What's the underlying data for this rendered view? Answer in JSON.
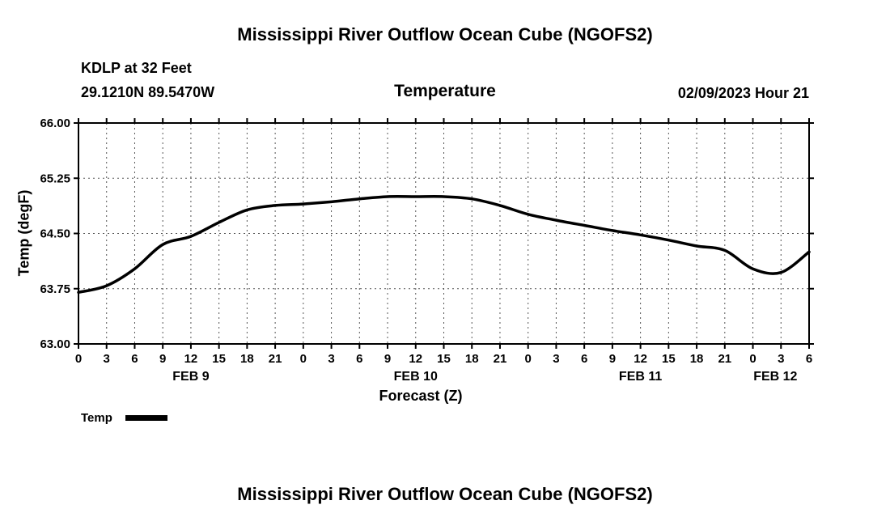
{
  "header": {
    "title": "Mississippi River Outflow Ocean Cube (NGOFS2)",
    "station": "KDLP at 32 Feet",
    "coordinates": "29.1210N  89.5470W",
    "plot_title": "Temperature",
    "datetime": "02/09/2023 Hour 21"
  },
  "legend": {
    "label": "Temp",
    "color": "#000000"
  },
  "footer": {
    "title": "Mississippi River Outflow Ocean Cube (NGOFS2)"
  },
  "chart_data": {
    "type": "line",
    "title": "Temperature",
    "xlabel": "Forecast (Z)",
    "ylabel": "Temp (degF)",
    "xlim": [
      0,
      78
    ],
    "ylim": [
      63.0,
      66.0
    ],
    "grid": true,
    "legend_position": "bottom-left",
    "ytick_values": [
      63.0,
      63.75,
      64.5,
      65.25,
      66.0
    ],
    "ytick_labels": [
      "63.00",
      "63.75",
      "64.50",
      "65.25",
      "66.00"
    ],
    "xtick_hours": [
      0,
      3,
      6,
      9,
      12,
      15,
      18,
      21,
      24,
      27,
      30,
      33,
      36,
      39,
      42,
      45,
      48,
      51,
      54,
      57,
      60,
      63,
      66,
      69,
      72,
      75,
      78
    ],
    "xtick_labels": [
      "0",
      "3",
      "6",
      "9",
      "12",
      "15",
      "18",
      "21",
      "0",
      "3",
      "6",
      "9",
      "12",
      "15",
      "18",
      "21",
      "0",
      "3",
      "6",
      "9",
      "12",
      "15",
      "18",
      "21",
      "0",
      "3",
      "6"
    ],
    "day_labels": [
      {
        "label": "FEB 9",
        "hour": 12
      },
      {
        "label": "FEB 10",
        "hour": 36
      },
      {
        "label": "FEB 11",
        "hour": 60
      },
      {
        "label": "FEB 12",
        "hour": 74.4
      }
    ],
    "x": [
      0,
      3,
      6,
      9,
      12,
      15,
      18,
      21,
      24,
      27,
      30,
      33,
      36,
      39,
      42,
      45,
      48,
      51,
      54,
      57,
      60,
      63,
      66,
      69,
      72,
      75,
      78
    ],
    "series": [
      {
        "name": "Temp",
        "color": "#000000",
        "values": [
          63.7,
          63.79,
          64.02,
          64.35,
          64.46,
          64.65,
          64.82,
          64.88,
          64.9,
          64.93,
          64.97,
          65.0,
          65.0,
          65.0,
          64.97,
          64.88,
          64.76,
          64.68,
          64.61,
          64.54,
          64.48,
          64.41,
          64.33,
          64.27,
          64.02,
          63.97,
          64.25
        ]
      }
    ]
  }
}
